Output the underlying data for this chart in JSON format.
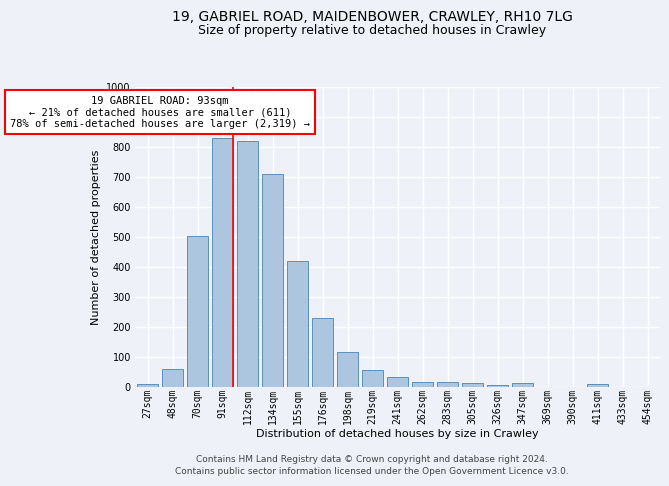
{
  "title_line1": "19, GABRIEL ROAD, MAIDENBOWER, CRAWLEY, RH10 7LG",
  "title_line2": "Size of property relative to detached houses in Crawley",
  "xlabel": "Distribution of detached houses by size in Crawley",
  "ylabel": "Number of detached properties",
  "categories": [
    "27sqm",
    "48sqm",
    "70sqm",
    "91sqm",
    "112sqm",
    "134sqm",
    "155sqm",
    "176sqm",
    "198sqm",
    "219sqm",
    "241sqm",
    "262sqm",
    "283sqm",
    "305sqm",
    "326sqm",
    "347sqm",
    "369sqm",
    "390sqm",
    "411sqm",
    "433sqm",
    "454sqm"
  ],
  "values": [
    8,
    57,
    503,
    830,
    820,
    707,
    418,
    230,
    115,
    55,
    32,
    15,
    15,
    13,
    5,
    13,
    0,
    0,
    10,
    0,
    0
  ],
  "bar_color": "#adc6e0",
  "bar_edge_color": "#5a8fc0",
  "red_line_index": 3,
  "annotation_text": "19 GABRIEL ROAD: 93sqm\n← 21% of detached houses are smaller (611)\n78% of semi-detached houses are larger (2,319) →",
  "annotation_box_color": "white",
  "annotation_box_edge_color": "red",
  "ylim": [
    0,
    1000
  ],
  "yticks": [
    0,
    100,
    200,
    300,
    400,
    500,
    600,
    700,
    800,
    900,
    1000
  ],
  "footer_line1": "Contains HM Land Registry data © Crown copyright and database right 2024.",
  "footer_line2": "Contains public sector information licensed under the Open Government Licence v3.0.",
  "background_color": "#eef2f8",
  "grid_color": "#ffffff",
  "title_fontsize": 10,
  "subtitle_fontsize": 9,
  "axis_label_fontsize": 8,
  "tick_fontsize": 7,
  "annotation_fontsize": 7.5,
  "footer_fontsize": 6.5
}
